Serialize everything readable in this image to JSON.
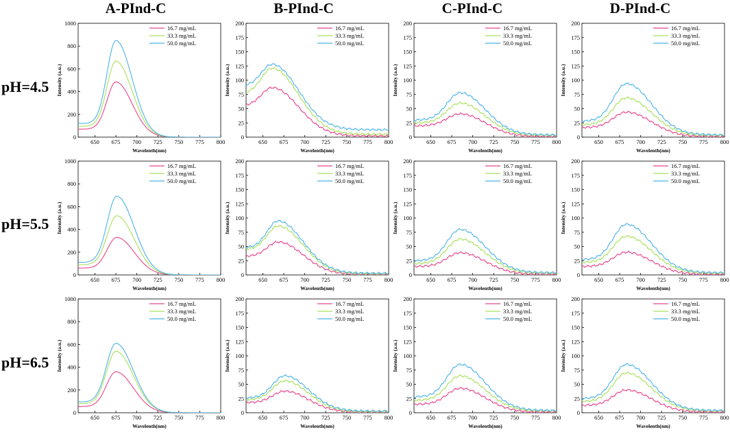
{
  "figure": {
    "column_titles": [
      "A-PInd-C",
      "B-PInd-C",
      "C-PInd-C",
      "D-PInd-C"
    ],
    "row_labels": [
      "pH=4.5",
      "pH=5.5",
      "pH=6.5"
    ],
    "xlabel": "Wavelenth(nm)",
    "ylabel": "Intensity (a.u.)",
    "legend": [
      "16.7 mg/mL",
      "33.3 mg/mL",
      "50.0 mg/mL"
    ],
    "colors": [
      "#e8438a",
      "#a8e05a",
      "#4ab3e8"
    ]
  },
  "chart_data": [
    {
      "type": "line",
      "title": "A-PInd-C",
      "row": "pH=4.5",
      "xlim": [
        630,
        800
      ],
      "ylim": [
        0,
        1000
      ],
      "yticks": [
        0,
        200,
        400,
        600,
        800,
        1000
      ],
      "xticks": [
        650,
        675,
        700,
        725,
        750,
        775,
        800
      ],
      "peak": 675,
      "left_w": 15,
      "right_w": 26,
      "tail": [
        0,
        0,
        0
      ],
      "series": [
        {
          "name": "16.7 mg/mL",
          "peak_value": 485,
          "base_value": 70
        },
        {
          "name": "33.3 mg/mL",
          "peak_value": 668,
          "base_value": 95
        },
        {
          "name": "50.0 mg/mL",
          "peak_value": 848,
          "base_value": 120
        }
      ]
    },
    {
      "type": "line",
      "title": "B-PInd-C",
      "row": "pH=4.5",
      "xlim": [
        630,
        800
      ],
      "ylim": [
        0,
        200
      ],
      "yticks": [
        0,
        25,
        50,
        75,
        100,
        125,
        150,
        175,
        200
      ],
      "xticks": [
        650,
        675,
        700,
        725,
        750,
        775,
        800
      ],
      "peak": 661,
      "left_w": 18,
      "right_w": 42,
      "tail": [
        2,
        5,
        13
      ],
      "series": [
        {
          "name": "16.7 mg/mL",
          "peak_value": 87,
          "base_value": 55
        },
        {
          "name": "33.3 mg/mL",
          "peak_value": 121,
          "base_value": 77
        },
        {
          "name": "50.0 mg/mL",
          "peak_value": 128,
          "base_value": 90
        }
      ]
    },
    {
      "type": "line",
      "title": "C-PInd-C",
      "row": "pH=4.5",
      "xlim": [
        630,
        800
      ],
      "ylim": [
        0,
        200
      ],
      "yticks": [
        0,
        25,
        50,
        75,
        100,
        125,
        150,
        175,
        200
      ],
      "xticks": [
        650,
        675,
        700,
        725,
        750,
        775,
        800
      ],
      "peak": 685,
      "left_w": 22,
      "right_w": 40,
      "tail": [
        1,
        3,
        4
      ],
      "series": [
        {
          "name": "16.7 mg/mL",
          "peak_value": 41,
          "base_value": 20
        },
        {
          "name": "33.3 mg/mL",
          "peak_value": 60,
          "base_value": 25
        },
        {
          "name": "50.0 mg/mL",
          "peak_value": 78,
          "base_value": 30
        }
      ]
    },
    {
      "type": "line",
      "title": "D-PInd-C",
      "row": "pH=4.5",
      "xlim": [
        630,
        800
      ],
      "ylim": [
        0,
        200
      ],
      "yticks": [
        0,
        25,
        50,
        75,
        100,
        125,
        150,
        175,
        200
      ],
      "xticks": [
        650,
        675,
        700,
        725,
        750,
        775,
        800
      ],
      "peak": 683,
      "left_w": 22,
      "right_w": 40,
      "tail": [
        1,
        3,
        4
      ],
      "series": [
        {
          "name": "16.7 mg/mL",
          "peak_value": 44,
          "base_value": 17
        },
        {
          "name": "33.3 mg/mL",
          "peak_value": 69,
          "base_value": 22
        },
        {
          "name": "50.0 mg/mL",
          "peak_value": 94,
          "base_value": 28
        }
      ]
    },
    {
      "type": "line",
      "title": "A-PInd-C",
      "row": "pH=5.5",
      "xlim": [
        630,
        800
      ],
      "ylim": [
        0,
        1000
      ],
      "yticks": [
        0,
        200,
        400,
        600,
        800,
        1000
      ],
      "xticks": [
        650,
        675,
        700,
        725,
        750,
        775,
        800
      ],
      "peak": 676,
      "left_w": 16,
      "right_w": 28,
      "tail": [
        0,
        0,
        0
      ],
      "series": [
        {
          "name": "16.7 mg/mL",
          "peak_value": 330,
          "base_value": 60
        },
        {
          "name": "33.3 mg/mL",
          "peak_value": 520,
          "base_value": 90
        },
        {
          "name": "50.0 mg/mL",
          "peak_value": 692,
          "base_value": 110
        }
      ]
    },
    {
      "type": "line",
      "title": "B-PInd-C",
      "row": "pH=5.5",
      "xlim": [
        630,
        800
      ],
      "ylim": [
        0,
        200
      ],
      "yticks": [
        0,
        25,
        50,
        75,
        100,
        125,
        150,
        175,
        200
      ],
      "xticks": [
        650,
        675,
        700,
        725,
        750,
        775,
        800
      ],
      "peak": 668,
      "left_w": 18,
      "right_w": 40,
      "tail": [
        1,
        2,
        3
      ],
      "series": [
        {
          "name": "16.7 mg/mL",
          "peak_value": 58,
          "base_value": 33
        },
        {
          "name": "33.3 mg/mL",
          "peak_value": 86,
          "base_value": 45
        },
        {
          "name": "50.0 mg/mL",
          "peak_value": 95,
          "base_value": 48
        }
      ]
    },
    {
      "type": "line",
      "title": "C-PInd-C",
      "row": "pH=5.5",
      "xlim": [
        630,
        800
      ],
      "ylim": [
        0,
        200
      ],
      "yticks": [
        0,
        25,
        50,
        75,
        100,
        125,
        150,
        175,
        200
      ],
      "xticks": [
        650,
        675,
        700,
        725,
        750,
        775,
        800
      ],
      "peak": 685,
      "left_w": 22,
      "right_w": 40,
      "tail": [
        1,
        3,
        4
      ],
      "series": [
        {
          "name": "16.7 mg/mL",
          "peak_value": 39,
          "base_value": 15
        },
        {
          "name": "33.3 mg/mL",
          "peak_value": 63,
          "base_value": 20
        },
        {
          "name": "50.0 mg/mL",
          "peak_value": 80,
          "base_value": 25
        }
      ]
    },
    {
      "type": "line",
      "title": "D-PInd-C",
      "row": "pH=5.5",
      "xlim": [
        630,
        800
      ],
      "ylim": [
        0,
        200
      ],
      "yticks": [
        0,
        25,
        50,
        75,
        100,
        125,
        150,
        175,
        200
      ],
      "xticks": [
        650,
        675,
        700,
        725,
        750,
        775,
        800
      ],
      "peak": 683,
      "left_w": 22,
      "right_w": 40,
      "tail": [
        1,
        3,
        4
      ],
      "series": [
        {
          "name": "16.7 mg/mL",
          "peak_value": 40,
          "base_value": 15
        },
        {
          "name": "33.3 mg/mL",
          "peak_value": 68,
          "base_value": 22
        },
        {
          "name": "50.0 mg/mL",
          "peak_value": 89,
          "base_value": 27
        }
      ]
    },
    {
      "type": "line",
      "title": "A-PInd-C",
      "row": "pH=6.5",
      "xlim": [
        630,
        800
      ],
      "ylim": [
        0,
        1000
      ],
      "yticks": [
        0,
        200,
        400,
        600,
        800,
        1000
      ],
      "xticks": [
        650,
        675,
        700,
        725,
        750,
        775,
        800
      ],
      "peak": 675,
      "left_w": 16,
      "right_w": 28,
      "tail": [
        0,
        0,
        0
      ],
      "series": [
        {
          "name": "16.7 mg/mL",
          "peak_value": 360,
          "base_value": 55
        },
        {
          "name": "33.3 mg/mL",
          "peak_value": 540,
          "base_value": 80
        },
        {
          "name": "50.0 mg/mL",
          "peak_value": 610,
          "base_value": 95
        }
      ]
    },
    {
      "type": "line",
      "title": "B-PInd-C",
      "row": "pH=6.5",
      "xlim": [
        630,
        800
      ],
      "ylim": [
        0,
        200
      ],
      "yticks": [
        0,
        25,
        50,
        75,
        100,
        125,
        150,
        175,
        200
      ],
      "xticks": [
        650,
        675,
        700,
        725,
        750,
        775,
        800
      ],
      "peak": 676,
      "left_w": 20,
      "right_w": 38,
      "tail": [
        1,
        2,
        3
      ],
      "series": [
        {
          "name": "16.7 mg/mL",
          "peak_value": 38,
          "base_value": 18
        },
        {
          "name": "33.3 mg/mL",
          "peak_value": 56,
          "base_value": 23
        },
        {
          "name": "50.0 mg/mL",
          "peak_value": 65,
          "base_value": 26
        }
      ]
    },
    {
      "type": "line",
      "title": "C-PInd-C",
      "row": "pH=6.5",
      "xlim": [
        630,
        800
      ],
      "ylim": [
        0,
        200
      ],
      "yticks": [
        0,
        25,
        50,
        75,
        100,
        125,
        150,
        175,
        200
      ],
      "xticks": [
        650,
        675,
        700,
        725,
        750,
        775,
        800
      ],
      "peak": 685,
      "left_w": 22,
      "right_w": 40,
      "tail": [
        1,
        3,
        4
      ],
      "series": [
        {
          "name": "16.7 mg/mL",
          "peak_value": 43,
          "base_value": 15
        },
        {
          "name": "33.3 mg/mL",
          "peak_value": 65,
          "base_value": 22
        },
        {
          "name": "50.0 mg/mL",
          "peak_value": 85,
          "base_value": 28
        }
      ]
    },
    {
      "type": "line",
      "title": "D-PInd-C",
      "row": "pH=6.5",
      "xlim": [
        630,
        800
      ],
      "ylim": [
        0,
        200
      ],
      "yticks": [
        0,
        25,
        50,
        75,
        100,
        125,
        150,
        175,
        200
      ],
      "xticks": [
        650,
        675,
        700,
        725,
        750,
        775,
        800
      ],
      "peak": 683,
      "left_w": 22,
      "right_w": 40,
      "tail": [
        1,
        3,
        4
      ],
      "series": [
        {
          "name": "16.7 mg/mL",
          "peak_value": 40,
          "base_value": 13
        },
        {
          "name": "33.3 mg/mL",
          "peak_value": 70,
          "base_value": 20
        },
        {
          "name": "50.0 mg/mL",
          "peak_value": 85,
          "base_value": 25
        }
      ]
    }
  ]
}
